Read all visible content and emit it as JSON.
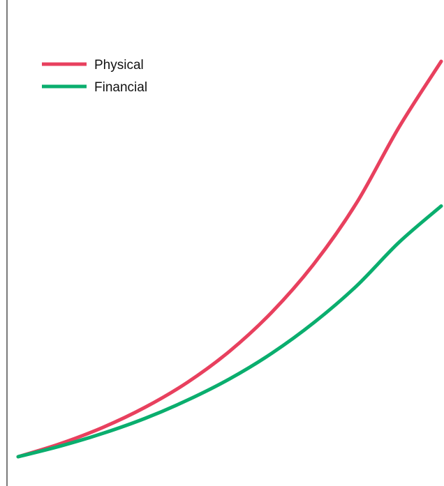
{
  "chart_data": {
    "type": "line",
    "title": "",
    "xlabel": "",
    "ylabel": "",
    "xlim": [
      0,
      100
    ],
    "ylim": [
      0,
      100
    ],
    "grid": false,
    "x_ticks": [],
    "y_ticks": [],
    "legend_position": "top-left",
    "x": [
      0,
      10,
      20,
      30,
      40,
      50,
      60,
      70,
      80,
      90,
      100
    ],
    "series": [
      {
        "name": "Physical",
        "color": "#e8405e",
        "values": [
          0.0,
          3.3,
          7.4,
          12.5,
          18.8,
          26.7,
          36.6,
          48.9,
          64.2,
          83.3,
          100.0
        ]
      },
      {
        "name": "Financial",
        "color": "#0aae6e",
        "values": [
          0.0,
          2.7,
          5.9,
          9.7,
          14.3,
          19.7,
          26.2,
          34.0,
          43.2,
          54.2,
          63.4
        ]
      }
    ]
  }
}
